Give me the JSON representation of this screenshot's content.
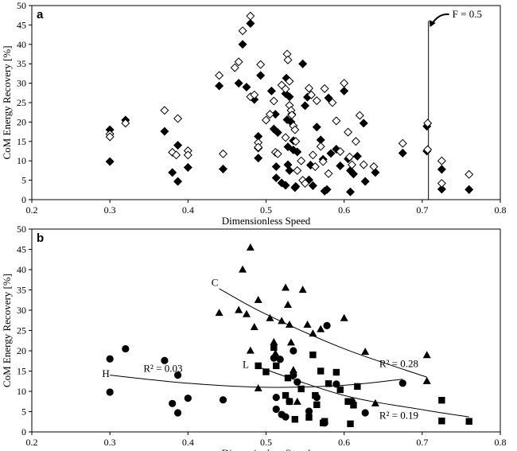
{
  "chart_data": [
    {
      "panel": "a",
      "type": "scatter",
      "xlabel": "Dimensionless Speed",
      "ylabel": "CoM Energy Recovery [%]",
      "xlim": [
        0.2,
        0.8
      ],
      "ylim": [
        0,
        50
      ],
      "xticks": [
        "0.2",
        "0.3",
        "0.4",
        "0.5",
        "0.6",
        "0.7",
        "0.8"
      ],
      "yticks": [
        "0",
        "5",
        "10",
        "15",
        "20",
        "25",
        "30",
        "35",
        "40",
        "45",
        "50"
      ],
      "vline": {
        "x": 0.708,
        "y_top": 46,
        "label": "F = 0.5"
      },
      "series": [
        {
          "marker": "filled-diamond",
          "points": [
            [
              0.3,
              18
            ],
            [
              0.3,
              9.8
            ],
            [
              0.32,
              20.5
            ],
            [
              0.37,
              17.6
            ],
            [
              0.38,
              7
            ],
            [
              0.387,
              14
            ],
            [
              0.387,
              4.7
            ],
            [
              0.4,
              8.3
            ],
            [
              0.44,
              29.3
            ],
            [
              0.445,
              7.9
            ],
            [
              0.47,
              40
            ],
            [
              0.465,
              30
            ],
            [
              0.475,
              29
            ],
            [
              0.48,
              45.4
            ],
            [
              0.485,
              25.8
            ],
            [
              0.49,
              16.3
            ],
            [
              0.49,
              13.3
            ],
            [
              0.49,
              10.7
            ],
            [
              0.493,
              32
            ],
            [
              0.507,
              28
            ],
            [
              0.512,
              22
            ],
            [
              0.51,
              18.2
            ],
            [
              0.515,
              17.3
            ],
            [
              0.513,
              5.6
            ],
            [
              0.513,
              8.5
            ],
            [
              0.52,
              4.3
            ],
            [
              0.525,
              3.7
            ],
            [
              0.525,
              27.3
            ],
            [
              0.526,
              31.3
            ],
            [
              0.527,
              20.6
            ],
            [
              0.528,
              13.6
            ],
            [
              0.528,
              9
            ],
            [
              0.53,
              7.5
            ],
            [
              0.53,
              26.5
            ],
            [
              0.532,
              20
            ],
            [
              0.533,
              22
            ],
            [
              0.535,
              15.2
            ],
            [
              0.535,
              12.8
            ],
            [
              0.537,
              3.1
            ],
            [
              0.538,
              3.4
            ],
            [
              0.54,
              12.3
            ],
            [
              0.547,
              35
            ],
            [
              0.55,
              24.2
            ],
            [
              0.553,
              26.4
            ],
            [
              0.555,
              5.1
            ],
            [
              0.557,
              8.9
            ],
            [
              0.56,
              3.6
            ],
            [
              0.565,
              18.7
            ],
            [
              0.57,
              15.4
            ],
            [
              0.573,
              10.4
            ],
            [
              0.575,
              2.2
            ],
            [
              0.578,
              2.6
            ],
            [
              0.58,
              26.2
            ],
            [
              0.583,
              11.9
            ],
            [
              0.59,
              13
            ],
            [
              0.595,
              8.7
            ],
            [
              0.6,
              28
            ],
            [
              0.605,
              10.5
            ],
            [
              0.608,
              7.5
            ],
            [
              0.608,
              2
            ],
            [
              0.612,
              6.6
            ],
            [
              0.617,
              11.2
            ],
            [
              0.625,
              19.7
            ],
            [
              0.627,
              4.7
            ],
            [
              0.64,
              7
            ],
            [
              0.675,
              12
            ],
            [
              0.706,
              18.9
            ],
            [
              0.706,
              12.5
            ],
            [
              0.725,
              7.8
            ],
            [
              0.725,
              2.7
            ],
            [
              0.76,
              2.6
            ]
          ]
        },
        {
          "marker": "open-diamond",
          "points": [
            [
              0.3,
              16.9
            ],
            [
              0.3,
              16.2
            ],
            [
              0.32,
              19.7
            ],
            [
              0.37,
              23
            ],
            [
              0.38,
              12.2
            ],
            [
              0.385,
              11.5
            ],
            [
              0.387,
              20.9
            ],
            [
              0.4,
              12.6
            ],
            [
              0.4,
              11.5
            ],
            [
              0.44,
              32
            ],
            [
              0.445,
              11.8
            ],
            [
              0.46,
              34
            ],
            [
              0.465,
              35.5
            ],
            [
              0.47,
              43.5
            ],
            [
              0.48,
              47.3
            ],
            [
              0.48,
              26.5
            ],
            [
              0.485,
              27
            ],
            [
              0.49,
              14.7
            ],
            [
              0.49,
              13.5
            ],
            [
              0.493,
              34.8
            ],
            [
              0.5,
              20.5
            ],
            [
              0.505,
              22
            ],
            [
              0.51,
              25.4
            ],
            [
              0.512,
              12.2
            ],
            [
              0.515,
              11.8
            ],
            [
              0.52,
              29.5
            ],
            [
              0.525,
              28.5
            ],
            [
              0.525,
              16
            ],
            [
              0.527,
              37.5
            ],
            [
              0.528,
              36
            ],
            [
              0.53,
              30.5
            ],
            [
              0.53,
              24.3
            ],
            [
              0.532,
              23
            ],
            [
              0.533,
              21.8
            ],
            [
              0.535,
              19
            ],
            [
              0.537,
              18
            ],
            [
              0.538,
              15
            ],
            [
              0.54,
              7.5
            ],
            [
              0.545,
              10
            ],
            [
              0.547,
              5
            ],
            [
              0.55,
              4.2
            ],
            [
              0.555,
              28.7
            ],
            [
              0.558,
              27
            ],
            [
              0.56,
              11.5
            ],
            [
              0.563,
              8.5
            ],
            [
              0.565,
              25.5
            ],
            [
              0.57,
              13.7
            ],
            [
              0.573,
              9.8
            ],
            [
              0.575,
              28.6
            ],
            [
              0.58,
              6.7
            ],
            [
              0.585,
              25
            ],
            [
              0.59,
              20.3
            ],
            [
              0.595,
              12.4
            ],
            [
              0.6,
              30
            ],
            [
              0.605,
              17.4
            ],
            [
              0.607,
              11
            ],
            [
              0.61,
              9
            ],
            [
              0.615,
              15
            ],
            [
              0.62,
              21.7
            ],
            [
              0.625,
              9
            ],
            [
              0.638,
              8.5
            ],
            [
              0.675,
              14.5
            ],
            [
              0.707,
              19.7
            ],
            [
              0.707,
              12.9
            ],
            [
              0.725,
              10
            ],
            [
              0.725,
              4.2
            ],
            [
              0.76,
              6.5
            ]
          ]
        }
      ]
    },
    {
      "panel": "b",
      "type": "scatter",
      "xlabel": "Dimensionless Speed",
      "ylabel": "CoM Energy Recovery [%]",
      "xlim": [
        0.2,
        0.8
      ],
      "ylim": [
        0,
        50
      ],
      "xticks": [
        "0.2",
        "0.3",
        "0.4",
        "0.5",
        "0.6",
        "0.7",
        "0.8"
      ],
      "yticks": [
        "0",
        "5",
        "10",
        "15",
        "20",
        "25",
        "30",
        "35",
        "40",
        "45",
        "50"
      ],
      "series": [
        {
          "marker": "circle",
          "label": "H",
          "r2": "R² = 0.03",
          "points": [
            [
              0.3,
              18
            ],
            [
              0.3,
              9.8
            ],
            [
              0.32,
              20.5
            ],
            [
              0.37,
              17.6
            ],
            [
              0.38,
              7
            ],
            [
              0.387,
              14
            ],
            [
              0.387,
              4.7
            ],
            [
              0.4,
              8.3
            ],
            [
              0.445,
              7.9
            ],
            [
              0.51,
              18.2
            ],
            [
              0.513,
              8.5
            ],
            [
              0.513,
              5.6
            ],
            [
              0.518,
              17.9
            ],
            [
              0.52,
              4.3
            ],
            [
              0.525,
              3.7
            ],
            [
              0.53,
              7.5
            ],
            [
              0.535,
              20
            ],
            [
              0.535,
              14
            ],
            [
              0.54,
              12.3
            ],
            [
              0.555,
              5.1
            ],
            [
              0.565,
              8.5
            ],
            [
              0.575,
              2.2
            ],
            [
              0.578,
              26.2
            ],
            [
              0.59,
              11.8
            ],
            [
              0.61,
              7.5
            ],
            [
              0.627,
              4.7
            ],
            [
              0.675,
              12
            ]
          ],
          "trend": [
            [
              0.3,
              14
            ],
            [
              0.4,
              12
            ],
            [
              0.5,
              11
            ],
            [
              0.6,
              11.5
            ],
            [
              0.675,
              13
            ]
          ]
        },
        {
          "marker": "triangle",
          "label": "C",
          "r2": "R² = 0.28",
          "points": [
            [
              0.44,
              29.3
            ],
            [
              0.465,
              30
            ],
            [
              0.47,
              40
            ],
            [
              0.475,
              29
            ],
            [
              0.48,
              45.4
            ],
            [
              0.48,
              20
            ],
            [
              0.485,
              25.8
            ],
            [
              0.49,
              32.5
            ],
            [
              0.49,
              10.7
            ],
            [
              0.505,
              28
            ],
            [
              0.51,
              22.1
            ],
            [
              0.512,
              19.3
            ],
            [
              0.52,
              27.3
            ],
            [
              0.525,
              35.5
            ],
            [
              0.528,
              31.3
            ],
            [
              0.53,
              26.4
            ],
            [
              0.532,
              22
            ],
            [
              0.535,
              15.2
            ],
            [
              0.54,
              7.4
            ],
            [
              0.547,
              35
            ],
            [
              0.553,
              26.4
            ],
            [
              0.56,
              24.2
            ],
            [
              0.57,
              25.3
            ],
            [
              0.6,
              28
            ],
            [
              0.627,
              19.7
            ],
            [
              0.64,
              7
            ],
            [
              0.706,
              18.9
            ],
            [
              0.706,
              12.5
            ]
          ],
          "trend": [
            [
              0.44,
              35.3
            ],
            [
              0.5,
              29
            ],
            [
              0.6,
              20.5
            ],
            [
              0.706,
              13.5
            ]
          ]
        },
        {
          "marker": "square",
          "label": "L",
          "r2": "R² = 0.19",
          "points": [
            [
              0.51,
              20.8
            ],
            [
              0.513,
              16.3
            ],
            [
              0.49,
              16.3
            ],
            [
              0.5,
              14.8
            ],
            [
              0.525,
              9
            ],
            [
              0.528,
              13.3
            ],
            [
              0.53,
              7.5
            ],
            [
              0.537,
              3.1
            ],
            [
              0.545,
              10.6
            ],
            [
              0.555,
              3.6
            ],
            [
              0.56,
              19
            ],
            [
              0.563,
              9
            ],
            [
              0.565,
              6.7
            ],
            [
              0.57,
              15
            ],
            [
              0.573,
              2.2
            ],
            [
              0.575,
              2.6
            ],
            [
              0.58,
              11.9
            ],
            [
              0.59,
              14.7
            ],
            [
              0.595,
              10.4
            ],
            [
              0.605,
              7.5
            ],
            [
              0.608,
              2
            ],
            [
              0.612,
              6.6
            ],
            [
              0.617,
              11.2
            ],
            [
              0.725,
              7.8
            ],
            [
              0.725,
              2.7
            ],
            [
              0.76,
              2.6
            ]
          ],
          "trend": [
            [
              0.49,
              16
            ],
            [
              0.6,
              9
            ],
            [
              0.7,
              5.5
            ],
            [
              0.76,
              3.7
            ]
          ]
        }
      ]
    }
  ]
}
